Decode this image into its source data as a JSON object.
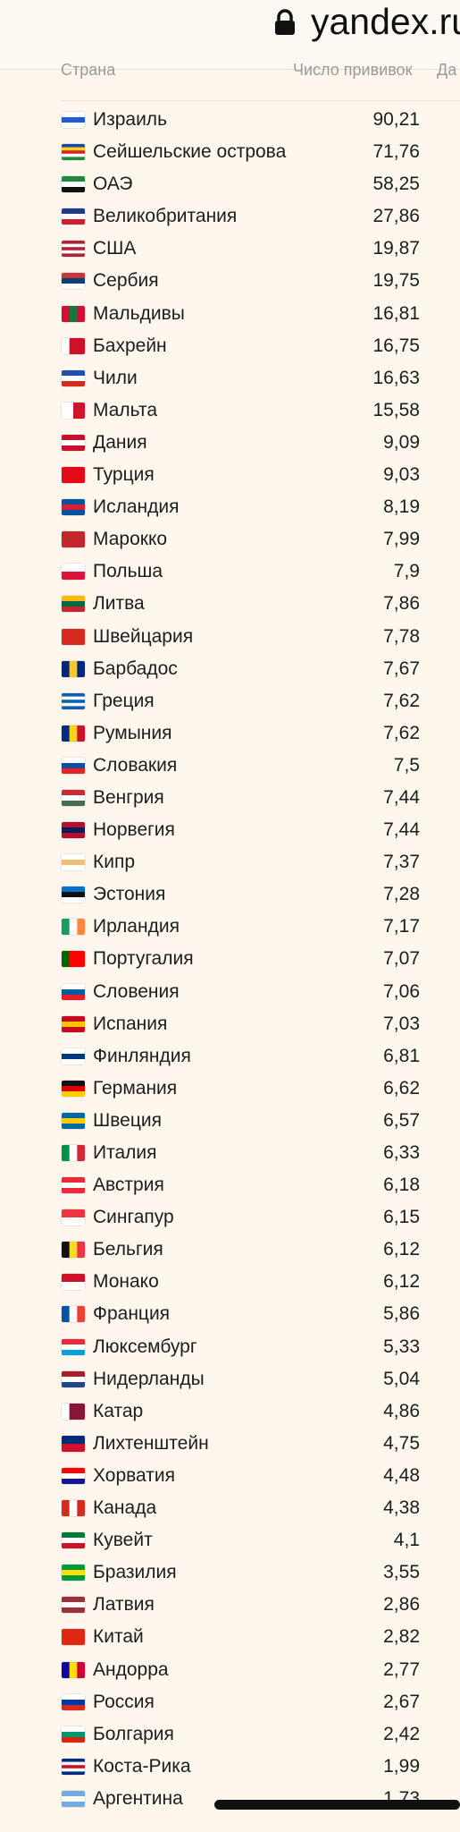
{
  "browser": {
    "domain": "yandex.ru"
  },
  "table": {
    "headers": {
      "country": "Страна",
      "vaccinations": "Число прививок",
      "date": "Да"
    },
    "rows": [
      {
        "country": "Израиль",
        "value": "90,21",
        "flag": [
          "#ffffff",
          "#1e5bd6",
          "#ffffff"
        ],
        "dir": "h"
      },
      {
        "country": "Сейшельские острова",
        "value": "71,76",
        "flag": [
          "#1a4aa8",
          "#ffd21f",
          "#d7261c",
          "#ffffff",
          "#1f8a3b"
        ],
        "dir": "h"
      },
      {
        "country": "ОАЭ",
        "value": "58,25",
        "flag": [
          "#1f8a3b",
          "#ffffff",
          "#111111"
        ],
        "dir": "h"
      },
      {
        "country": "Великобритания",
        "value": "27,86",
        "flag": [
          "#1d3b8c",
          "#ffffff",
          "#cf2030"
        ],
        "dir": "h"
      },
      {
        "country": "США",
        "value": "19,87",
        "flag": [
          "#b22234",
          "#ffffff",
          "#b22234",
          "#ffffff",
          "#b22234"
        ],
        "dir": "h"
      },
      {
        "country": "Сербия",
        "value": "19,75",
        "flag": [
          "#c6363c",
          "#0c4076",
          "#ffffff"
        ],
        "dir": "h"
      },
      {
        "country": "Мальдивы",
        "value": "16,81",
        "flag": [
          "#d21034",
          "#0f7a3c",
          "#d21034"
        ],
        "dir": "v"
      },
      {
        "country": "Бахрейн",
        "value": "16,75",
        "flag": [
          "#ffffff",
          "#ce1126",
          "#ce1126"
        ],
        "dir": "v"
      },
      {
        "country": "Чили",
        "value": "16,63",
        "flag": [
          "#1f4fb0",
          "#ffffff",
          "#d52b1e"
        ],
        "dir": "h"
      },
      {
        "country": "Мальта",
        "value": "15,58",
        "flag": [
          "#ffffff",
          "#cf142b"
        ],
        "dir": "v"
      },
      {
        "country": "Дания",
        "value": "9,09",
        "flag": [
          "#c8102e",
          "#ffffff",
          "#c8102e"
        ],
        "dir": "h"
      },
      {
        "country": "Турция",
        "value": "9,03",
        "flag": [
          "#e30a17",
          "#e30a17",
          "#e30a17"
        ],
        "dir": "h"
      },
      {
        "country": "Исландия",
        "value": "8,19",
        "flag": [
          "#02529c",
          "#dc1e35",
          "#02529c"
        ],
        "dir": "h"
      },
      {
        "country": "Марокко",
        "value": "7,99",
        "flag": [
          "#c1272d",
          "#c1272d",
          "#c1272d"
        ],
        "dir": "h"
      },
      {
        "country": "Польша",
        "value": "7,9",
        "flag": [
          "#ffffff",
          "#dc143c"
        ],
        "dir": "h"
      },
      {
        "country": "Литва",
        "value": "7,86",
        "flag": [
          "#fdb913",
          "#006a44",
          "#c1272d"
        ],
        "dir": "h"
      },
      {
        "country": "Швейцария",
        "value": "7,78",
        "flag": [
          "#d52b1e",
          "#d52b1e",
          "#d52b1e"
        ],
        "dir": "h"
      },
      {
        "country": "Барбадос",
        "value": "7,67",
        "flag": [
          "#00267f",
          "#ffc726",
          "#00267f"
        ],
        "dir": "v"
      },
      {
        "country": "Греция",
        "value": "7,62",
        "flag": [
          "#0d5eaf",
          "#ffffff",
          "#0d5eaf",
          "#ffffff",
          "#0d5eaf"
        ],
        "dir": "h"
      },
      {
        "country": "Румыния",
        "value": "7,62",
        "flag": [
          "#002b7f",
          "#fcd116",
          "#ce1126"
        ],
        "dir": "v"
      },
      {
        "country": "Словакия",
        "value": "7,5",
        "flag": [
          "#ffffff",
          "#0b4ea2",
          "#ee1c25"
        ],
        "dir": "h"
      },
      {
        "country": "Венгрия",
        "value": "7,44",
        "flag": [
          "#ce2939",
          "#ffffff",
          "#477050"
        ],
        "dir": "h"
      },
      {
        "country": "Норвегия",
        "value": "7,44",
        "flag": [
          "#ba0c2f",
          "#00205b",
          "#ba0c2f"
        ],
        "dir": "h"
      },
      {
        "country": "Кипр",
        "value": "7,37",
        "flag": [
          "#ffffff",
          "#f0c070",
          "#ffffff"
        ],
        "dir": "h"
      },
      {
        "country": "Эстония",
        "value": "7,28",
        "flag": [
          "#0072ce",
          "#111111",
          "#ffffff"
        ],
        "dir": "h"
      },
      {
        "country": "Ирландия",
        "value": "7,17",
        "flag": [
          "#169b62",
          "#ffffff",
          "#ff883e"
        ],
        "dir": "v"
      },
      {
        "country": "Португалия",
        "value": "7,07",
        "flag": [
          "#006600",
          "#ff0000",
          "#ff0000"
        ],
        "dir": "v"
      },
      {
        "country": "Словения",
        "value": "7,06",
        "flag": [
          "#ffffff",
          "#005da4",
          "#ed1c24"
        ],
        "dir": "h"
      },
      {
        "country": "Испания",
        "value": "7,03",
        "flag": [
          "#c60b1e",
          "#ffc400",
          "#c60b1e"
        ],
        "dir": "h"
      },
      {
        "country": "Финляндия",
        "value": "6,81",
        "flag": [
          "#ffffff",
          "#003580",
          "#ffffff"
        ],
        "dir": "h"
      },
      {
        "country": "Германия",
        "value": "6,62",
        "flag": [
          "#111111",
          "#dd0000",
          "#ffce00"
        ],
        "dir": "h"
      },
      {
        "country": "Швеция",
        "value": "6,57",
        "flag": [
          "#006aa7",
          "#fecc00",
          "#006aa7"
        ],
        "dir": "h"
      },
      {
        "country": "Италия",
        "value": "6,33",
        "flag": [
          "#009246",
          "#ffffff",
          "#ce2b37"
        ],
        "dir": "v"
      },
      {
        "country": "Австрия",
        "value": "6,18",
        "flag": [
          "#ed2939",
          "#ffffff",
          "#ed2939"
        ],
        "dir": "h"
      },
      {
        "country": "Сингапур",
        "value": "6,15",
        "flag": [
          "#ef3340",
          "#ffffff"
        ],
        "dir": "h"
      },
      {
        "country": "Бельгия",
        "value": "6,12",
        "flag": [
          "#111111",
          "#fdda24",
          "#ef3340"
        ],
        "dir": "v"
      },
      {
        "country": "Монако",
        "value": "6,12",
        "flag": [
          "#ce1126",
          "#ffffff"
        ],
        "dir": "h"
      },
      {
        "country": "Франция",
        "value": "5,86",
        "flag": [
          "#0055a4",
          "#ffffff",
          "#ef4135"
        ],
        "dir": "v"
      },
      {
        "country": "Люксембург",
        "value": "5,33",
        "flag": [
          "#ed2939",
          "#ffffff",
          "#00a1de"
        ],
        "dir": "h"
      },
      {
        "country": "Нидерланды",
        "value": "5,04",
        "flag": [
          "#ae1c28",
          "#ffffff",
          "#21468b"
        ],
        "dir": "h"
      },
      {
        "country": "Катар",
        "value": "4,86",
        "flag": [
          "#ffffff",
          "#8a1538",
          "#8a1538"
        ],
        "dir": "v"
      },
      {
        "country": "Лихтенштейн",
        "value": "4,75",
        "flag": [
          "#002b7f",
          "#ce1126"
        ],
        "dir": "h"
      },
      {
        "country": "Хорватия",
        "value": "4,48",
        "flag": [
          "#ff0000",
          "#ffffff",
          "#171796"
        ],
        "dir": "h"
      },
      {
        "country": "Канада",
        "value": "4,38",
        "flag": [
          "#d52b1e",
          "#ffffff",
          "#d52b1e"
        ],
        "dir": "v"
      },
      {
        "country": "Кувейт",
        "value": "4,1",
        "flag": [
          "#007a3d",
          "#ffffff",
          "#ce1126"
        ],
        "dir": "h"
      },
      {
        "country": "Бразилия",
        "value": "3,55",
        "flag": [
          "#009c3b",
          "#ffdf00",
          "#009c3b"
        ],
        "dir": "h"
      },
      {
        "country": "Латвия",
        "value": "2,86",
        "flag": [
          "#9e3039",
          "#ffffff",
          "#9e3039"
        ],
        "dir": "h"
      },
      {
        "country": "Китай",
        "value": "2,82",
        "flag": [
          "#de2910",
          "#de2910",
          "#de2910"
        ],
        "dir": "h"
      },
      {
        "country": "Андорра",
        "value": "2,77",
        "flag": [
          "#10069f",
          "#fedd00",
          "#d50032"
        ],
        "dir": "v"
      },
      {
        "country": "Россия",
        "value": "2,67",
        "flag": [
          "#ffffff",
          "#0039a6",
          "#d52b1e"
        ],
        "dir": "h"
      },
      {
        "country": "Болгария",
        "value": "2,42",
        "flag": [
          "#ffffff",
          "#00966e",
          "#d62612"
        ],
        "dir": "h"
      },
      {
        "country": "Коста-Рика",
        "value": "1,99",
        "flag": [
          "#002b7f",
          "#ffffff",
          "#ce1126",
          "#ffffff",
          "#002b7f"
        ],
        "dir": "h"
      },
      {
        "country": "Аргентина",
        "value": "1,73",
        "flag": [
          "#74acdf",
          "#ffffff",
          "#74acdf"
        ],
        "dir": "h"
      }
    ]
  }
}
